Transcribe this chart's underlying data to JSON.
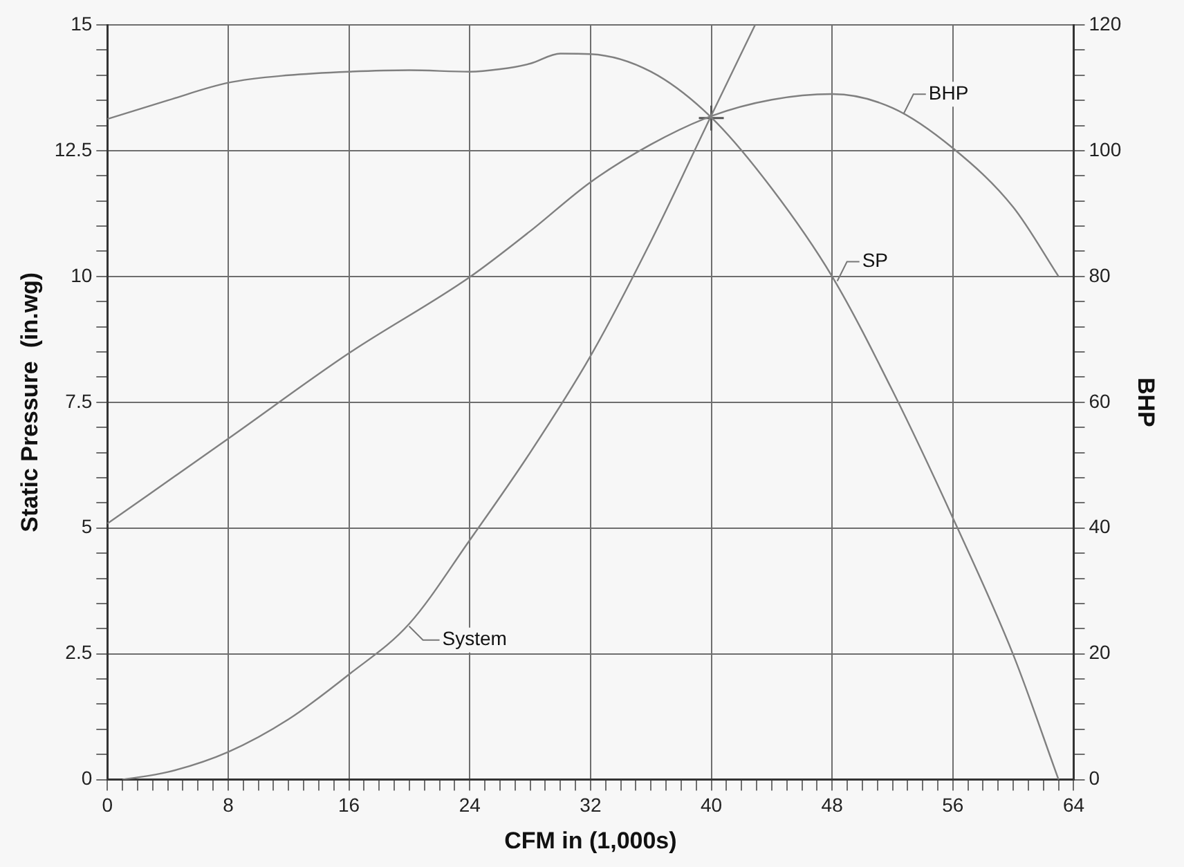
{
  "chart_data": {
    "type": "line",
    "xlabel": "CFM in (1,000s)",
    "ylabel": "Static Pressure  (in.wg)",
    "y2label": "BHP",
    "xlim": [
      0,
      64
    ],
    "ylim": [
      0,
      15
    ],
    "y2lim": [
      0,
      120
    ],
    "xticks": [
      0,
      {
        "value": 1,
        "label": null
      },
      {
        "value": 2,
        "label": null
      },
      {
        "value": 3,
        "label": null
      },
      {
        "value": 4,
        "label": null
      },
      {
        "value": 5,
        "label": null
      },
      {
        "value": 6,
        "label": null
      },
      {
        "value": 7,
        "label": null
      },
      8,
      {
        "value": 9,
        "label": null
      },
      {
        "value": 10,
        "label": null
      },
      {
        "value": 11,
        "label": null
      },
      {
        "value": 12,
        "label": null
      },
      {
        "value": 13,
        "label": null
      },
      {
        "value": 14,
        "label": null
      },
      {
        "value": 15,
        "label": null
      },
      16,
      {
        "value": 17,
        "label": null
      },
      {
        "value": 18,
        "label": null
      },
      {
        "value": 19,
        "label": null
      },
      {
        "value": 20,
        "label": null
      },
      {
        "value": 21,
        "label": null
      },
      {
        "value": 22,
        "label": null
      },
      {
        "value": 23,
        "label": null
      },
      24,
      {
        "value": 25,
        "label": null
      },
      {
        "value": 26,
        "label": null
      },
      {
        "value": 27,
        "label": null
      },
      {
        "value": 28,
        "label": null
      },
      {
        "value": 29,
        "label": null
      },
      {
        "value": 30,
        "label": null
      },
      {
        "value": 31,
        "label": null
      },
      32,
      {
        "value": 33,
        "label": null
      },
      {
        "value": 34,
        "label": null
      },
      {
        "value": 35,
        "label": null
      },
      {
        "value": 36,
        "label": null
      },
      {
        "value": 37,
        "label": null
      },
      {
        "value": 38,
        "label": null
      },
      {
        "value": 39,
        "label": null
      },
      40,
      {
        "value": 41,
        "label": null
      },
      {
        "value": 42,
        "label": null
      },
      {
        "value": 43,
        "label": null
      },
      {
        "value": 44,
        "label": null
      },
      {
        "value": 45,
        "label": null
      },
      {
        "value": 46,
        "label": null
      },
      {
        "value": 47,
        "label": null
      },
      48,
      {
        "value": 49,
        "label": null
      },
      {
        "value": 50,
        "label": null
      },
      {
        "value": 51,
        "label": null
      },
      {
        "value": 52,
        "label": null
      },
      {
        "value": 53,
        "label": null
      },
      {
        "value": 54,
        "label": null
      },
      {
        "value": 55,
        "label": null
      },
      56,
      {
        "value": 57,
        "label": null
      },
      {
        "value": 58,
        "label": null
      },
      {
        "value": 59,
        "label": null
      },
      {
        "value": 60,
        "label": null
      },
      {
        "value": 61,
        "label": null
      },
      {
        "value": 62,
        "label": null
      },
      {
        "value": 63,
        "label": null
      },
      64
    ],
    "yticks": [
      0,
      {
        "value": 0.5,
        "label": null
      },
      {
        "value": 1,
        "label": null
      },
      {
        "value": 1.5,
        "label": null
      },
      {
        "value": 2,
        "label": null
      },
      2.5,
      {
        "value": 3,
        "label": null
      },
      {
        "value": 3.5,
        "label": null
      },
      {
        "value": 4,
        "label": null
      },
      {
        "value": 4.5,
        "label": null
      },
      5,
      {
        "value": 5.5,
        "label": null
      },
      {
        "value": 6,
        "label": null
      },
      {
        "value": 6.5,
        "label": null
      },
      {
        "value": 7,
        "label": null
      },
      7.5,
      {
        "value": 8,
        "label": null
      },
      {
        "value": 8.5,
        "label": null
      },
      {
        "value": 9,
        "label": null
      },
      {
        "value": 9.5,
        "label": null
      },
      10,
      {
        "value": 10.5,
        "label": null
      },
      {
        "value": 11,
        "label": null
      },
      {
        "value": 11.5,
        "label": null
      },
      {
        "value": 12,
        "label": null
      },
      12.5,
      {
        "value": 13,
        "label": null
      },
      {
        "value": 13.5,
        "label": null
      },
      {
        "value": 14,
        "label": null
      },
      {
        "value": 14.5,
        "label": null
      },
      15
    ],
    "y2ticks": [
      0,
      {
        "value": 4,
        "label": null
      },
      {
        "value": 8,
        "label": null
      },
      {
        "value": 12,
        "label": null
      },
      {
        "value": 16,
        "label": null
      },
      20,
      {
        "value": 24,
        "label": null
      },
      {
        "value": 28,
        "label": null
      },
      {
        "value": 32,
        "label": null
      },
      {
        "value": 36,
        "label": null
      },
      40,
      {
        "value": 44,
        "label": null
      },
      {
        "value": 48,
        "label": null
      },
      {
        "value": 52,
        "label": null
      },
      {
        "value": 56,
        "label": null
      },
      60,
      {
        "value": 64,
        "label": null
      },
      {
        "value": 68,
        "label": null
      },
      {
        "value": 72,
        "label": null
      },
      {
        "value": 76,
        "label": null
      },
      80,
      {
        "value": 84,
        "label": null
      },
      {
        "value": 88,
        "label": null
      },
      {
        "value": 92,
        "label": null
      },
      {
        "value": 96,
        "label": null
      },
      100,
      {
        "value": 104,
        "label": null
      },
      {
        "value": 108,
        "label": null
      },
      {
        "value": 112,
        "label": null
      },
      {
        "value": 116,
        "label": null
      },
      120
    ],
    "grid": true,
    "legend": "right",
    "marker": "none",
    "line_style": "solid",
    "series": [
      {
        "name": "SP",
        "color": "#808080",
        "x": [
          0,
          4,
          8,
          12,
          16,
          20,
          24,
          26,
          28,
          30,
          32,
          36,
          40,
          44,
          48,
          52,
          56,
          60,
          63
        ],
        "values": [
          13.13,
          13.5,
          13.85,
          14.0,
          14.07,
          14.1,
          14.07,
          14.12,
          14.23,
          14.43,
          14.42,
          14.07,
          13.16,
          11.75,
          10.0,
          7.73,
          5.2,
          2.48,
          0
        ]
      },
      {
        "name": "BHP",
        "color": "#808080",
        "axis": "y2",
        "x": [
          0,
          8,
          16,
          24,
          28,
          32,
          36,
          40,
          44,
          48,
          52,
          56,
          60,
          63
        ],
        "values": [
          40.7,
          54.2,
          67.8,
          79.9,
          87.2,
          95.0,
          101.0,
          105.5,
          108.1,
          109,
          106.8,
          100.4,
          91,
          80
        ]
      },
      {
        "name": "System",
        "color": "#808080",
        "x": [
          1,
          4,
          8,
          12,
          16,
          20,
          24,
          28,
          32,
          36,
          40,
          42.9
        ],
        "values": [
          0,
          0.15,
          0.55,
          1.2,
          2.09,
          3.1,
          4.76,
          6.5,
          8.42,
          10.7,
          13.2,
          15
        ]
      },
      {
        "type": "scatter",
        "color": "#555555",
        "marker": "cross",
        "x": [
          40
        ],
        "values": [
          13.15
        ]
      }
    ]
  }
}
